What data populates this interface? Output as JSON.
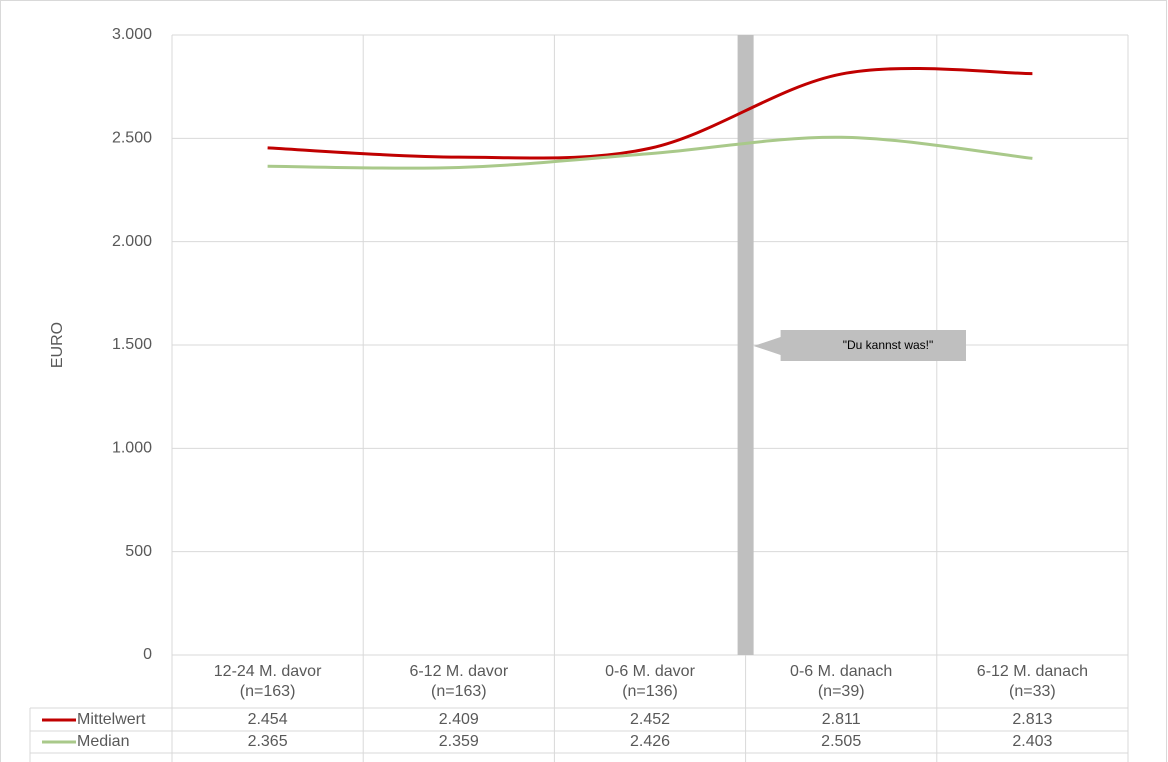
{
  "chart_data": {
    "type": "line",
    "y_label": "EURO",
    "categories": [
      "12-24 M. davor",
      "6-12 M. davor",
      "0-6 M. davor",
      "0-6 M. danach",
      "6-12 M. danach"
    ],
    "category_notes": [
      "(n=163)",
      "(n=163)",
      "(n=136)",
      "(n=39)",
      "(n=33)"
    ],
    "series": [
      {
        "name": "Mittelwert",
        "color": "#c00000",
        "values": [
          2454,
          2409,
          2452,
          2811,
          2813
        ],
        "value_labels": [
          "2.454",
          "2.409",
          "2.452",
          "2.811",
          "2.813"
        ]
      },
      {
        "name": "Median",
        "color": "#a9c98a",
        "values": [
          2365,
          2359,
          2426,
          2505,
          2403
        ],
        "value_labels": [
          "2.365",
          "2.359",
          "2.426",
          "2.505",
          "2.403"
        ]
      }
    ],
    "ylim": [
      0,
      3000
    ],
    "yticks": [
      0,
      500,
      {
        "value": 1000,
        "label": "1.000"
      },
      {
        "value": 1500,
        "label": "1.500"
      },
      {
        "value": 2000,
        "label": "2.000"
      },
      {
        "value": 2500,
        "label": "2.500"
      },
      {
        "value": 3000,
        "label": "3.000"
      }
    ],
    "grid": true,
    "smooth": true,
    "annotation": "\"Du kannst was!\""
  }
}
